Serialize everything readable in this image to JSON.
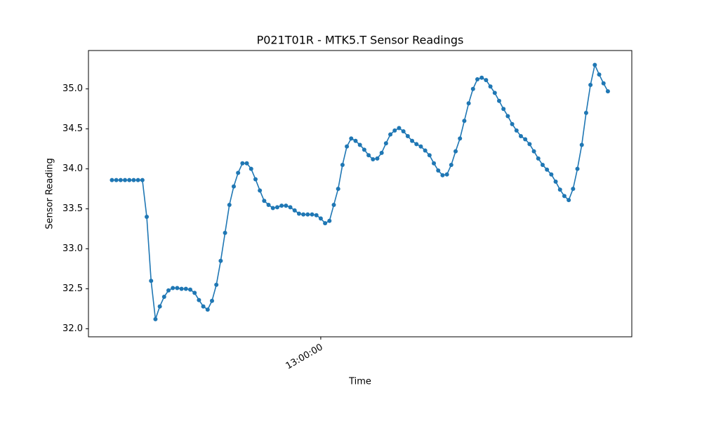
{
  "chart_data": {
    "type": "line",
    "title": "P021T01R - MTK5.T Sensor Readings",
    "xlabel": "Time",
    "ylabel": "Sensor Reading",
    "x": [
      732,
      733,
      734,
      735,
      736,
      737,
      738,
      739,
      740,
      741,
      742,
      743,
      744,
      745,
      746,
      747,
      748,
      749,
      750,
      751,
      752,
      753,
      754,
      755,
      756,
      757,
      758,
      759,
      760,
      761,
      762,
      763,
      764,
      765,
      766,
      767,
      768,
      769,
      770,
      771,
      772,
      773,
      774,
      775,
      776,
      777,
      778,
      779,
      780,
      781,
      782,
      783,
      784,
      785,
      786,
      787,
      788,
      789,
      790,
      791,
      792,
      793,
      794,
      795,
      796,
      797,
      798,
      799,
      800,
      801,
      802,
      803,
      804,
      805,
      806,
      807,
      808,
      809,
      810,
      811,
      812,
      813,
      814,
      815,
      816,
      817,
      818,
      819,
      820,
      821,
      822,
      823,
      824,
      825,
      826,
      827,
      828,
      829,
      830,
      831,
      832,
      833,
      834,
      835,
      836,
      837,
      838,
      839,
      840,
      841,
      842,
      843,
      844,
      845,
      846
    ],
    "series": [
      {
        "name": "MTK5.T",
        "color": "#1f77b4",
        "values": [
          33.86,
          33.86,
          33.86,
          33.86,
          33.86,
          33.86,
          33.86,
          33.86,
          33.4,
          32.6,
          32.12,
          32.28,
          32.4,
          32.48,
          32.51,
          32.51,
          32.5,
          32.5,
          32.49,
          32.45,
          32.36,
          32.28,
          32.24,
          32.35,
          32.55,
          32.85,
          33.2,
          33.55,
          33.78,
          33.95,
          34.07,
          34.07,
          34.0,
          33.87,
          33.73,
          33.6,
          33.55,
          33.51,
          33.52,
          33.54,
          33.54,
          33.52,
          33.48,
          33.44,
          33.43,
          33.43,
          33.43,
          33.42,
          33.38,
          33.32,
          33.35,
          33.55,
          33.75,
          34.05,
          34.28,
          34.38,
          34.35,
          34.3,
          34.24,
          34.17,
          34.12,
          34.13,
          34.2,
          34.32,
          34.43,
          34.48,
          34.51,
          34.47,
          34.41,
          34.35,
          34.31,
          34.28,
          34.23,
          34.17,
          34.07,
          33.98,
          33.92,
          33.93,
          34.05,
          34.22,
          34.38,
          34.6,
          34.82,
          35.0,
          35.12,
          35.14,
          35.11,
          35.03,
          34.95,
          34.85,
          34.75,
          34.66,
          34.56,
          34.48,
          34.41,
          34.37,
          34.31,
          34.22,
          34.13,
          34.05,
          33.99,
          33.93,
          33.84,
          33.74,
          33.66,
          33.61,
          33.75,
          34.0,
          34.3,
          34.7,
          35.05,
          35.3,
          35.18,
          35.07,
          34.97
        ]
      }
    ],
    "xlim": [
      726.6,
      851.5
    ],
    "xticks": [
      {
        "value": 780,
        "label": "13:00:00"
      }
    ],
    "ylim": [
      31.9,
      35.48
    ],
    "yticks": [
      {
        "value": 32.0,
        "label": "32.0"
      },
      {
        "value": 32.5,
        "label": "32.5"
      },
      {
        "value": 33.0,
        "label": "33.0"
      },
      {
        "value": 33.5,
        "label": "33.5"
      },
      {
        "value": 34.0,
        "label": "34.0"
      },
      {
        "value": 34.5,
        "label": "34.5"
      },
      {
        "value": 35.0,
        "label": "35.0"
      }
    ],
    "grid": false
  }
}
